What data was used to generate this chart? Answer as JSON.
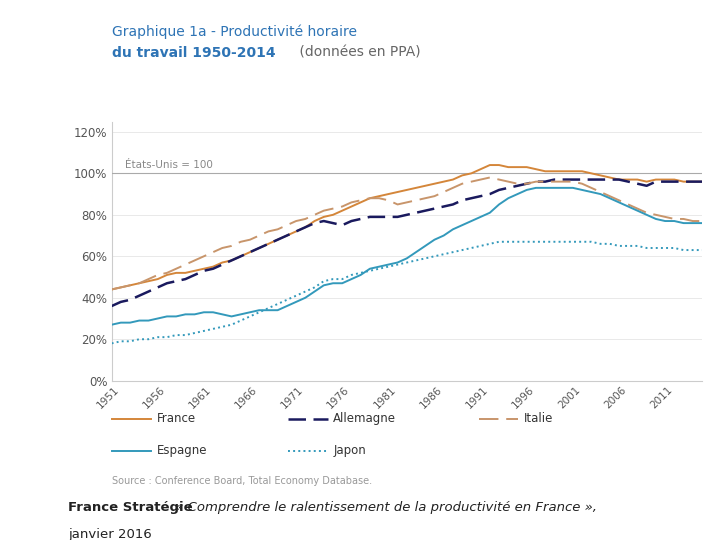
{
  "title_line1": "Graphique 1a - Productivité horaire",
  "title_line2_bold": "du travail 1950-2014",
  "title_line2_normal": " (données en PPA)",
  "reference_label": "États-Unis = 100",
  "source_text": "Source : Conference Board, Total Economy Database.",
  "footer_bold": "France Stratégie",
  "footer_italic": " « Comprendre le ralentissement de la productivité en France »,",
  "footer_line2": "janvier 2016",
  "years": [
    1950,
    1951,
    1952,
    1953,
    1954,
    1955,
    1956,
    1957,
    1958,
    1959,
    1960,
    1961,
    1962,
    1963,
    1964,
    1965,
    1966,
    1967,
    1968,
    1969,
    1970,
    1971,
    1972,
    1973,
    1974,
    1975,
    1976,
    1977,
    1978,
    1979,
    1980,
    1981,
    1982,
    1983,
    1984,
    1985,
    1986,
    1987,
    1988,
    1989,
    1990,
    1991,
    1992,
    1993,
    1994,
    1995,
    1996,
    1997,
    1998,
    1999,
    2000,
    2001,
    2002,
    2003,
    2004,
    2005,
    2006,
    2007,
    2008,
    2009,
    2010,
    2011,
    2012,
    2013,
    2014
  ],
  "france": [
    44,
    45,
    46,
    47,
    48,
    49,
    51,
    52,
    52,
    53,
    54,
    55,
    57,
    58,
    60,
    62,
    64,
    66,
    68,
    70,
    72,
    74,
    77,
    79,
    80,
    82,
    84,
    86,
    88,
    89,
    90,
    91,
    92,
    93,
    94,
    95,
    96,
    97,
    99,
    100,
    102,
    104,
    104,
    103,
    103,
    103,
    102,
    101,
    101,
    101,
    101,
    101,
    100,
    99,
    98,
    97,
    97,
    97,
    96,
    97,
    97,
    97,
    96,
    96,
    96
  ],
  "allemagne": [
    36,
    38,
    39,
    41,
    43,
    45,
    47,
    48,
    49,
    51,
    53,
    54,
    56,
    58,
    60,
    62,
    64,
    66,
    68,
    70,
    72,
    74,
    76,
    77,
    76,
    75,
    77,
    78,
    79,
    79,
    79,
    79,
    80,
    81,
    82,
    83,
    84,
    85,
    87,
    88,
    89,
    90,
    92,
    93,
    94,
    95,
    96,
    96,
    97,
    97,
    97,
    97,
    97,
    97,
    97,
    97,
    96,
    95,
    94,
    96,
    96,
    96,
    96,
    96,
    96
  ],
  "italie": [
    44,
    45,
    46,
    47,
    49,
    51,
    52,
    54,
    56,
    58,
    60,
    62,
    64,
    65,
    67,
    68,
    70,
    72,
    73,
    75,
    77,
    78,
    80,
    82,
    83,
    84,
    86,
    87,
    88,
    88,
    87,
    85,
    86,
    87,
    88,
    89,
    91,
    93,
    95,
    96,
    97,
    98,
    97,
    96,
    95,
    95,
    96,
    96,
    96,
    96,
    96,
    95,
    93,
    91,
    89,
    87,
    85,
    83,
    81,
    80,
    79,
    78,
    78,
    77,
    77
  ],
  "espagne": [
    27,
    28,
    28,
    29,
    29,
    30,
    31,
    31,
    32,
    32,
    33,
    33,
    32,
    31,
    32,
    33,
    34,
    34,
    34,
    36,
    38,
    40,
    43,
    46,
    47,
    47,
    49,
    51,
    54,
    55,
    56,
    57,
    59,
    62,
    65,
    68,
    70,
    73,
    75,
    77,
    79,
    81,
    85,
    88,
    90,
    92,
    93,
    93,
    93,
    93,
    93,
    92,
    91,
    90,
    88,
    86,
    84,
    82,
    80,
    78,
    77,
    77,
    76,
    76,
    76
  ],
  "japon": [
    18,
    19,
    19,
    20,
    20,
    21,
    21,
    22,
    22,
    23,
    24,
    25,
    26,
    27,
    29,
    31,
    33,
    35,
    37,
    39,
    41,
    43,
    45,
    48,
    49,
    49,
    51,
    52,
    53,
    54,
    55,
    56,
    57,
    58,
    59,
    60,
    61,
    62,
    63,
    64,
    65,
    66,
    67,
    67,
    67,
    67,
    67,
    67,
    67,
    67,
    67,
    67,
    67,
    66,
    66,
    65,
    65,
    65,
    64,
    64,
    64,
    64,
    63,
    63,
    63
  ],
  "france_color": "#D4863A",
  "allemagne_color": "#1a1a5e",
  "italie_color": "#C8956B",
  "espagne_color": "#3399BB",
  "japon_color": "#3399BB",
  "ylim": [
    0,
    125
  ],
  "yticks": [
    0,
    20,
    40,
    60,
    80,
    100,
    120
  ],
  "ytick_labels": [
    "0%",
    "20%",
    "40%",
    "60%",
    "80%",
    "100%",
    "120%"
  ],
  "xticks": [
    1951,
    1956,
    1961,
    1966,
    1971,
    1976,
    1981,
    1986,
    1991,
    1996,
    2001,
    2006,
    2011
  ],
  "reference_y": 100,
  "title_color": "#2E74B5",
  "title_normal_color": "#555555",
  "background_color": "#FFFFFF"
}
